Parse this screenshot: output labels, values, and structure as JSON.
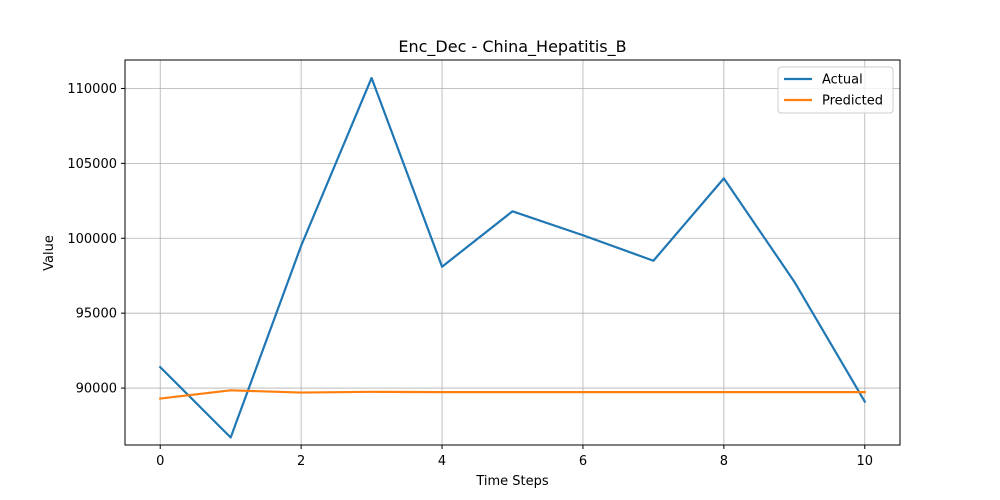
{
  "chart_data": {
    "type": "line",
    "title": "Enc_Dec - China_Hepatitis_B",
    "xlabel": "Time Steps",
    "ylabel": "Value",
    "x": [
      0,
      1,
      2,
      3,
      4,
      5,
      6,
      7,
      8,
      9,
      10
    ],
    "xlim": [
      -0.5,
      10.5
    ],
    "ylim": [
      86200,
      111900
    ],
    "xticks": [
      0,
      2,
      4,
      6,
      8,
      10
    ],
    "yticks": [
      90000,
      95000,
      100000,
      105000,
      110000
    ],
    "grid": true,
    "legend": "top-right",
    "series": [
      {
        "name": "Actual",
        "color": "#1f77b4",
        "values": [
          91400,
          86700,
          99500,
          110700,
          98100,
          101800,
          100200,
          98500,
          104000,
          97100,
          89100
        ]
      },
      {
        "name": "Predicted",
        "color": "#ff7f0e",
        "values": [
          89300,
          89850,
          89700,
          89750,
          89730,
          89730,
          89730,
          89730,
          89730,
          89730,
          89730
        ]
      }
    ]
  }
}
